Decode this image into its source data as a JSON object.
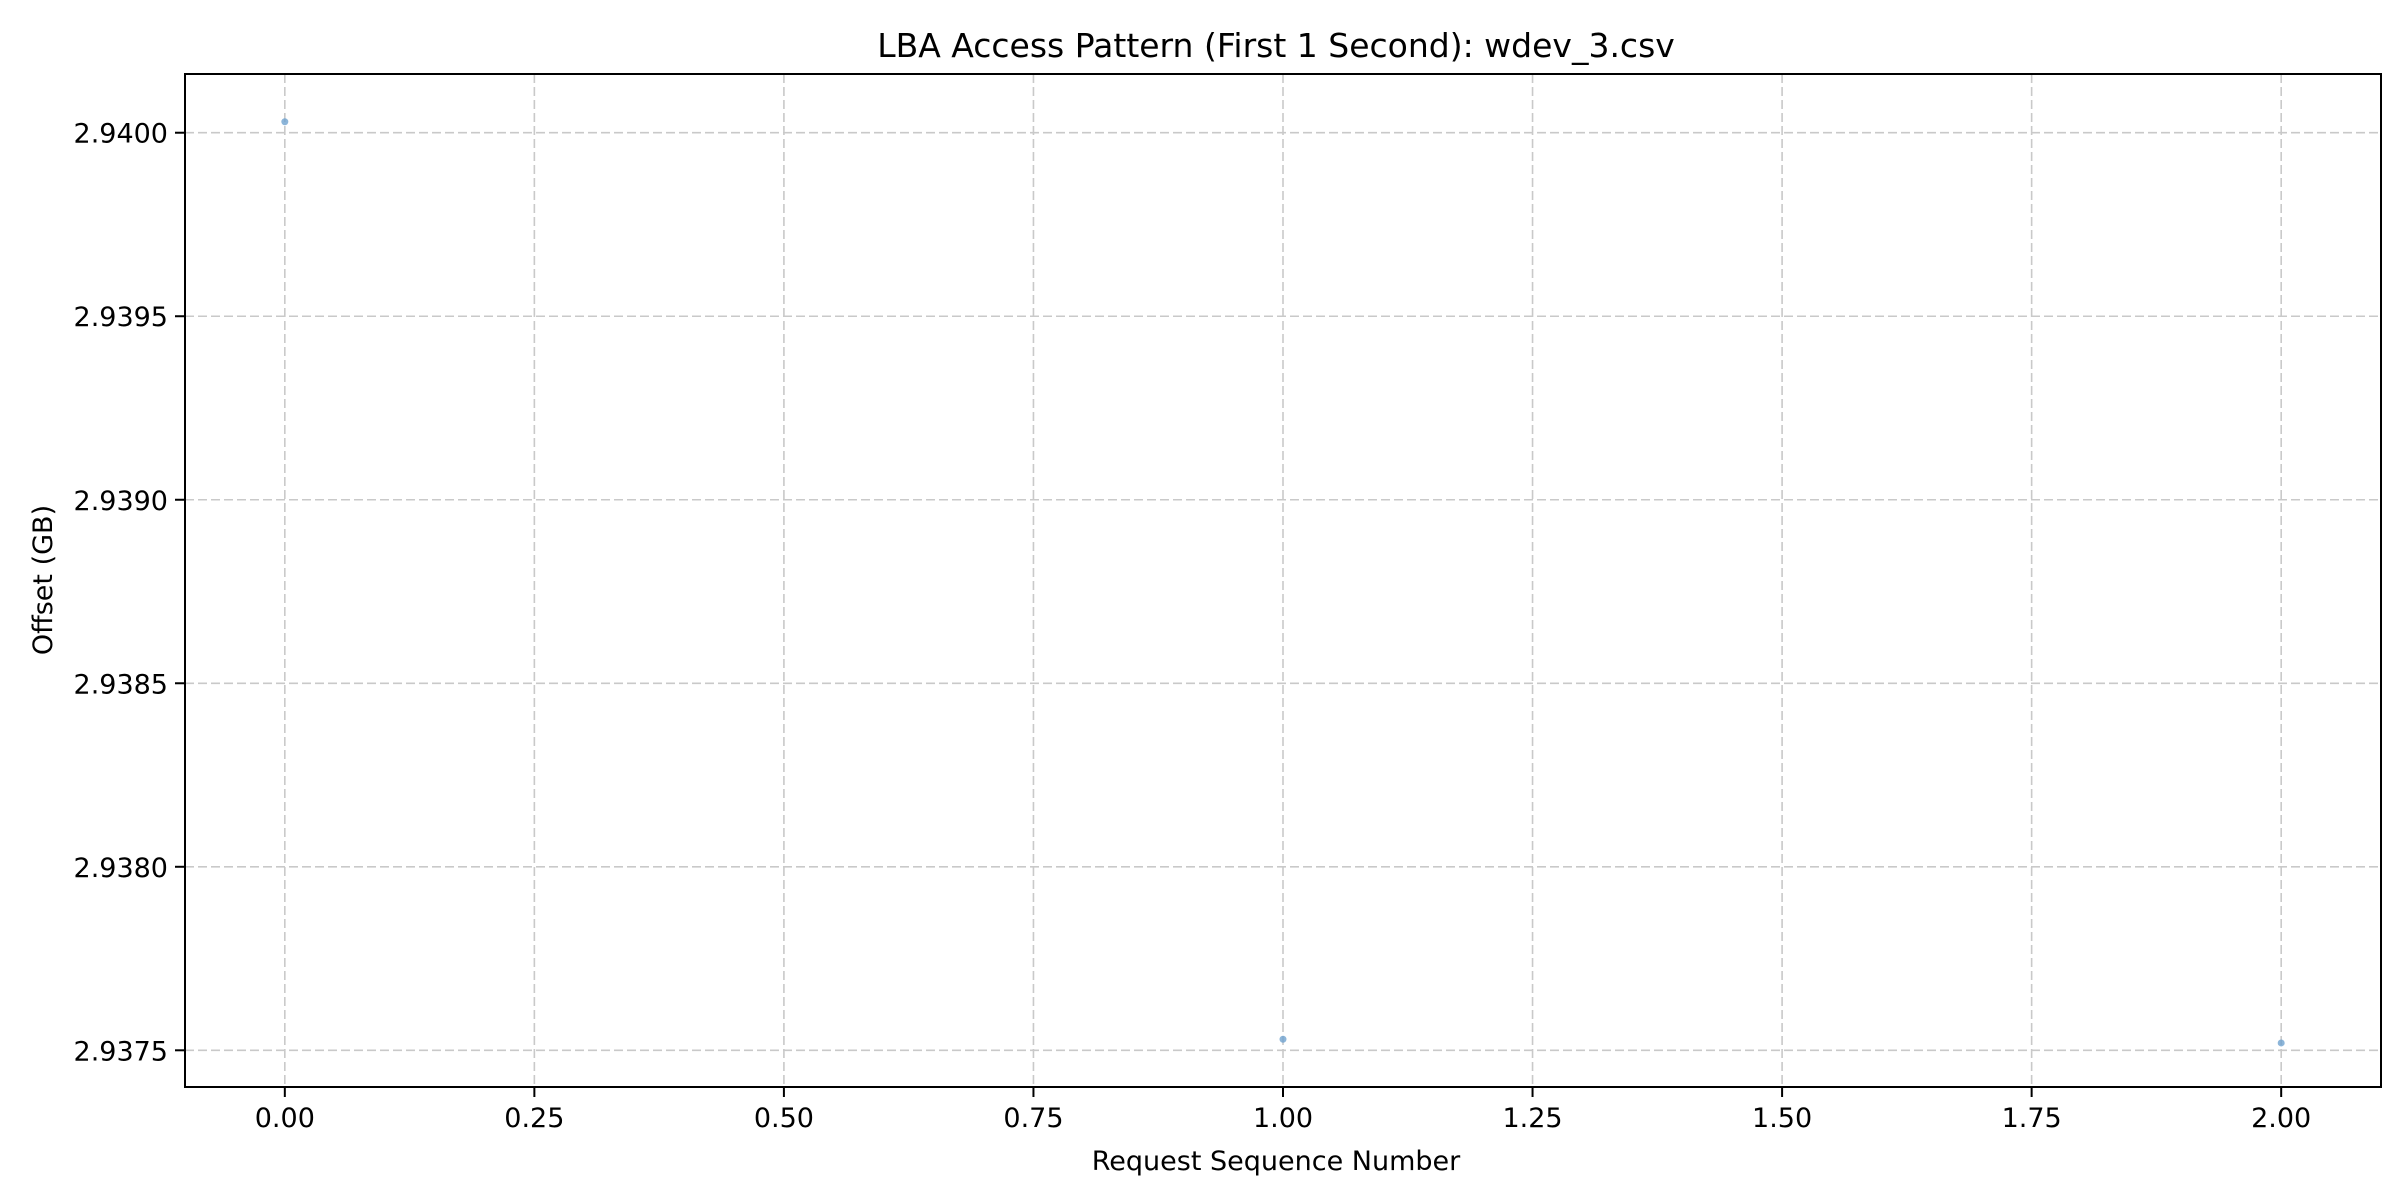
{
  "chart_data": {
    "type": "scatter",
    "title": "LBA Access Pattern (First 1 Second): wdev_3.csv",
    "xlabel": "Request Sequence Number",
    "ylabel": "Offset (GB)",
    "xlim": [
      -0.1,
      2.1
    ],
    "ylim": [
      2.9374,
      2.94016
    ],
    "xticks": [
      0,
      0.25,
      0.5,
      0.75,
      1,
      1.25,
      1.5,
      1.75,
      2
    ],
    "xtick_labels": [
      "0.00",
      "0.25",
      "0.50",
      "0.75",
      "1.00",
      "1.25",
      "1.50",
      "1.75",
      "2.00"
    ],
    "yticks": [
      2.9375,
      2.938,
      2.9385,
      2.939,
      2.9395,
      2.94
    ],
    "ytick_labels": [
      "2.9375",
      "2.9380",
      "2.9385",
      "2.9390",
      "2.9395",
      "2.9400"
    ],
    "grid": true,
    "grid_style": "dashed",
    "marker_color": "#6fa3d0",
    "points": [
      {
        "x": 0,
        "y": 2.94003
      },
      {
        "x": 1,
        "y": 2.93753
      },
      {
        "x": 2,
        "y": 2.93752
      }
    ]
  }
}
